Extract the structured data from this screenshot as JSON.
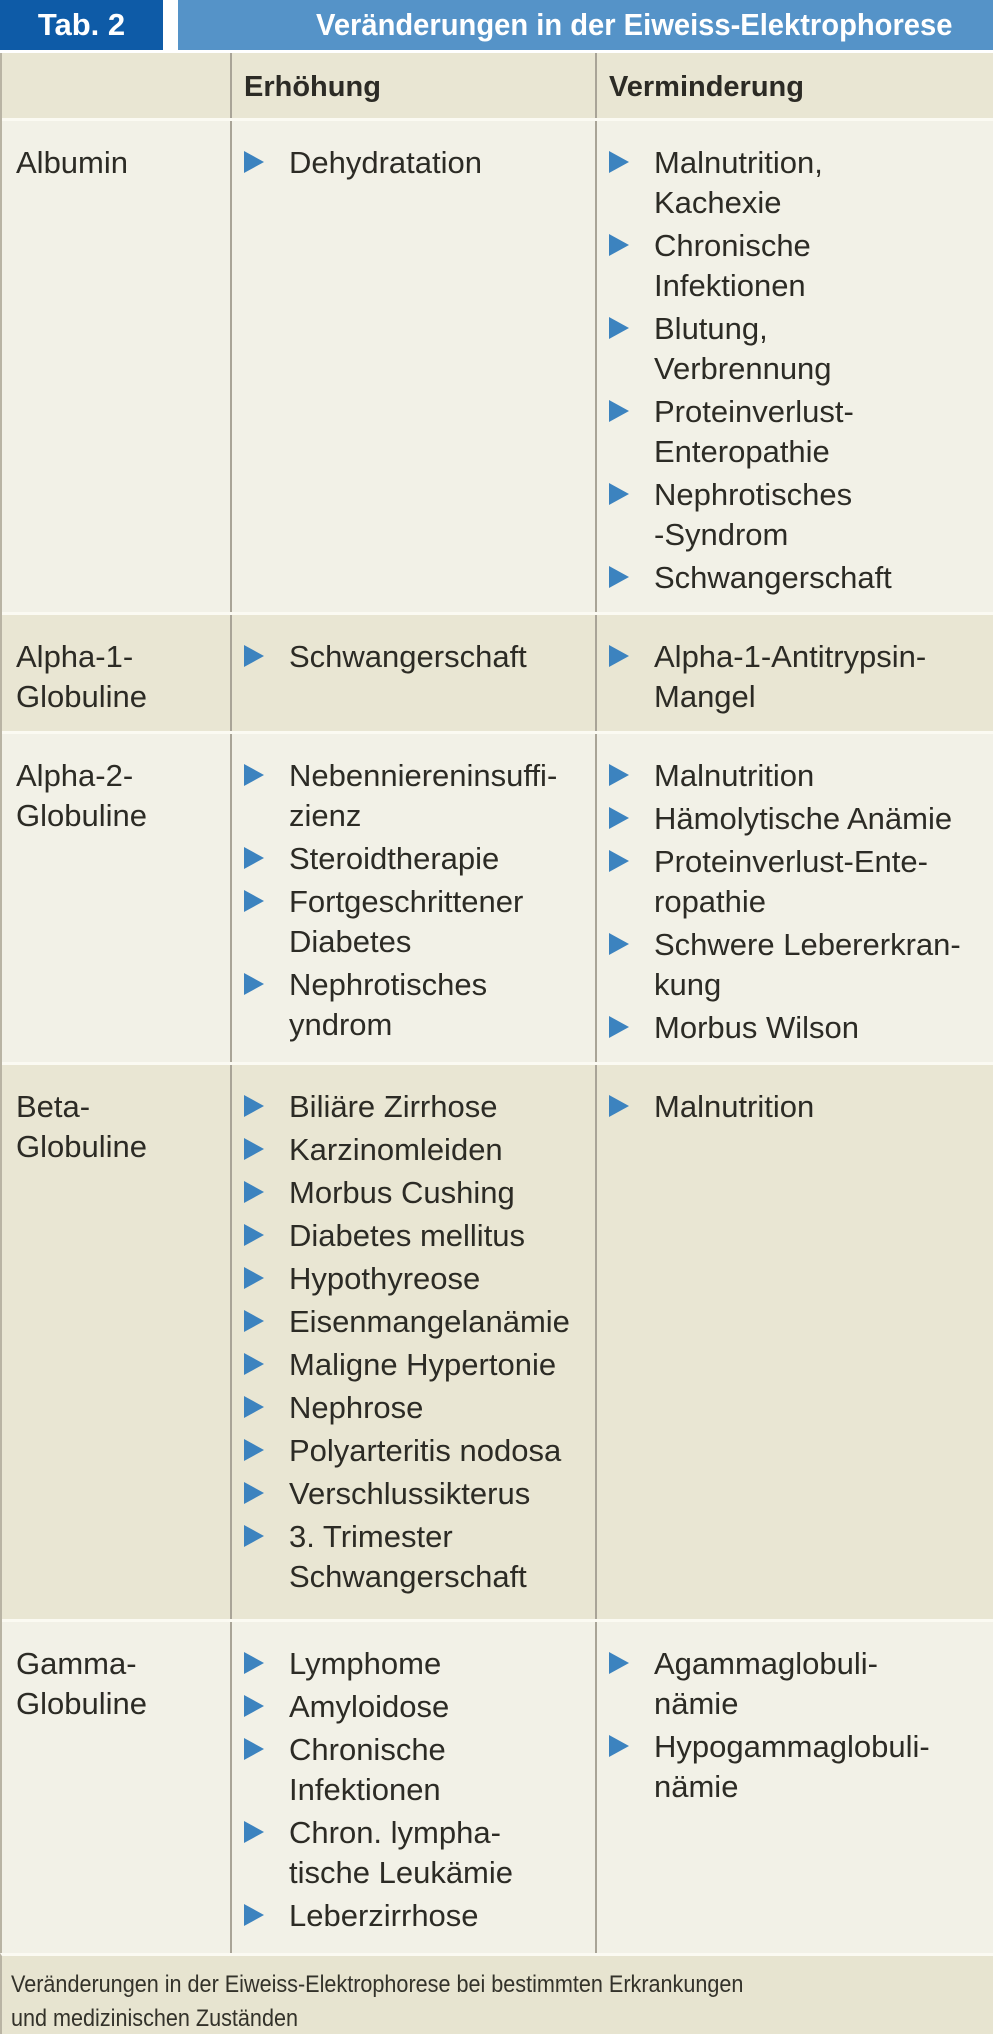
{
  "header": {
    "tab_label": "Tab. 2",
    "title": "Veränderungen in der Eiweiss-Elektrophorese"
  },
  "columns": {
    "erhoehung": "Erhöhung",
    "verminderung": "Verminderung"
  },
  "rows": [
    {
      "label": "Albumin",
      "erhoehung": [
        "Dehydratation"
      ],
      "verminderung": [
        "Malnutrition,\nKachexie",
        "Chronische\nInfektionen",
        "Blutung,\nVerbrennung",
        "Proteinverlust-\nEnteropathie",
        "Nephrotisches\n-Syndrom",
        "Schwangerschaft"
      ]
    },
    {
      "label": "Alpha-1-\nGlobuline",
      "erhoehung": [
        "Schwangerschaft"
      ],
      "verminderung": [
        "Alpha-1-Antitrypsin-\nMangel"
      ]
    },
    {
      "label": "Alpha-2-\nGlobuline",
      "erhoehung": [
        "Nebenniereninsuffi-\nzienz",
        "Steroidtherapie",
        "Fortgeschrittener\nDiabetes",
        "Nephrotisches\nyndrom"
      ],
      "verminderung": [
        "Malnutrition",
        "Hämolytische Anämie",
        "Proteinverlust-Ente-\nropathie",
        "Schwere Lebererkran-\nkung",
        "Morbus Wilson"
      ]
    },
    {
      "label": "Beta-\nGlobuline",
      "erhoehung": [
        "Biliäre Zirrhose",
        "Karzinomleiden",
        "Morbus Cushing",
        "Diabetes mellitus",
        "Hypothyreose",
        "Eisenmangelanämie",
        "Maligne Hypertonie",
        "Nephrose",
        "Polyarteritis nodosa",
        "Verschlussikterus",
        "3. Trimester\nSchwangerschaft"
      ],
      "verminderung": [
        "Malnutrition"
      ]
    },
    {
      "label": "Gamma-\nGlobuline",
      "erhoehung": [
        "Lymphome",
        "Amyloidose",
        "Chronische\nInfektionen",
        "Chron. lympha-\ntische Leukämie",
        "Leberzirrhose"
      ],
      "verminderung": [
        "Agammaglobuli-\nnämie",
        "Hypogammaglobuli-\nnämie"
      ]
    }
  ],
  "caption": "Veränderungen in der Eiweiss-Elektrophorese bei bestimmten Erkrankungen\nund medizinischen Zuständen",
  "colors": {
    "dark_blue": "#0e5ba7",
    "light_blue": "#5593c8",
    "bullet_blue": "#3c83bf",
    "row_light": "#f2f1e7",
    "row_dark": "#e9e6d3",
    "footer_bg": "#e7e4d0"
  }
}
